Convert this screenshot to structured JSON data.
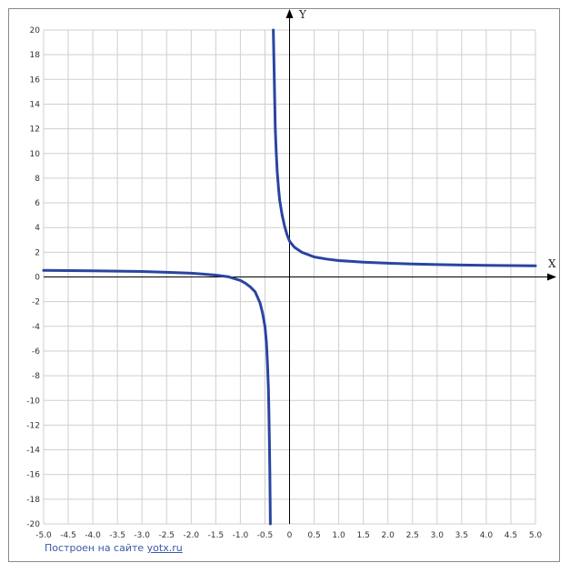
{
  "chart_data": {
    "type": "line",
    "xlim": [
      -5.0,
      5.0
    ],
    "ylim": [
      -20,
      20
    ],
    "x_ticks": [
      "-5.0",
      "-4.5",
      "-4.0",
      "-3.5",
      "-3.0",
      "-2.5",
      "-2.0",
      "-1.5",
      "-1.0",
      "-0.5",
      "0",
      "0.5",
      "1.0",
      "1.5",
      "2.0",
      "2.5",
      "3.0",
      "3.5",
      "4.0",
      "4.5",
      "5.0"
    ],
    "y_ticks": [
      "20",
      "18",
      "16",
      "14",
      "12",
      "10",
      "8",
      "6",
      "4",
      "2",
      "0",
      "-2",
      "-4",
      "-6",
      "-8",
      "-10",
      "-12",
      "-14",
      "-16",
      "-18",
      "-20"
    ],
    "xlabel": "X",
    "ylabel": "Y",
    "grid": true,
    "line_color": "#2a45a0",
    "series": [
      {
        "x": [
          -5.0,
          -4.5,
          -4.0,
          -3.5,
          -3.0,
          -2.5,
          -2.0,
          -1.75,
          -1.5,
          -1.25,
          -1.0,
          -0.9,
          -0.8,
          -0.7,
          -0.6,
          -0.55,
          -0.5,
          -0.47,
          -0.45,
          -0.43,
          -0.42,
          -0.41,
          -0.4,
          -0.395,
          -0.39
        ],
        "y": [
          0.53,
          0.52,
          0.5,
          0.47,
          0.44,
          0.38,
          0.3,
          0.23,
          0.15,
          0.02,
          -0.28,
          -0.5,
          -0.8,
          -1.2,
          -2.1,
          -2.9,
          -4.0,
          -5.3,
          -6.9,
          -9.0,
          -10.9,
          -13.2,
          -16.0,
          -18.0,
          -20.0
        ]
      },
      {
        "x": [
          -0.33,
          -0.32,
          -0.31,
          -0.3,
          -0.29,
          -0.27,
          -0.25,
          -0.22,
          -0.2,
          -0.15,
          -0.1,
          -0.05,
          0.0,
          0.1,
          0.25,
          0.5,
          0.75,
          1.0,
          1.5,
          2.0,
          2.5,
          3.0,
          3.5,
          4.0,
          4.5,
          5.0
        ],
        "y": [
          20.0,
          18.0,
          16.0,
          14.0,
          12.0,
          10.0,
          8.5,
          7.0,
          6.2,
          5.0,
          4.1,
          3.4,
          2.9,
          2.4,
          2.0,
          1.62,
          1.45,
          1.33,
          1.2,
          1.11,
          1.05,
          1.0,
          0.97,
          0.94,
          0.92,
          0.9
        ]
      }
    ]
  },
  "footer": {
    "text": "Построен на сайте ",
    "link": "yotx.ru"
  }
}
